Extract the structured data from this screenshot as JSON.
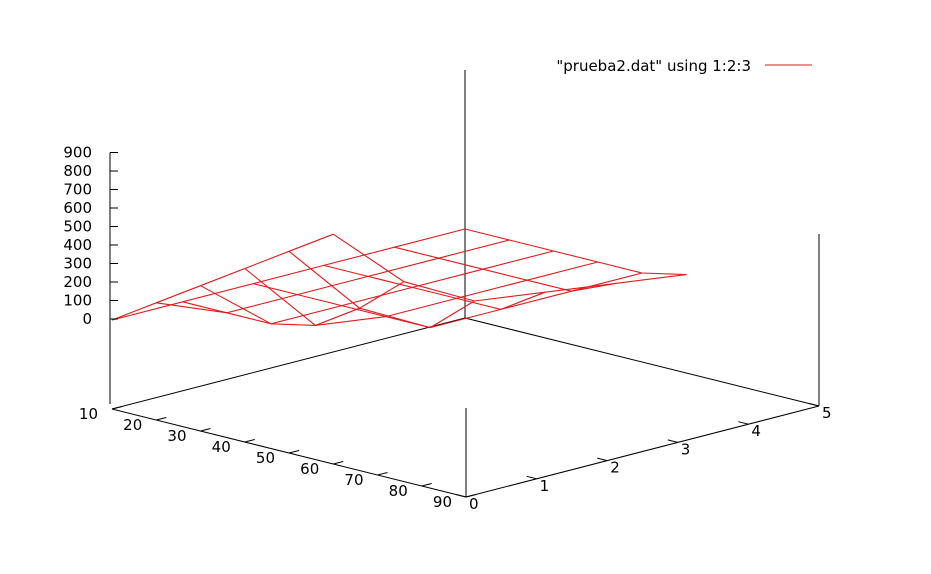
{
  "chart_data": {
    "type": "surface",
    "title": "",
    "legend": {
      "label": "\"prueba2.dat\" using 1:2:3",
      "placement": "top-right",
      "color": "#e31a1c"
    },
    "x": [
      10,
      20,
      30,
      40,
      50,
      60
    ],
    "y": [
      0,
      1,
      2,
      3,
      4,
      5
    ],
    "z_matrix": [
      [
        0,
        0,
        0,
        0,
        0,
        0
      ],
      [
        150,
        0,
        0,
        0,
        0,
        0
      ],
      [
        300,
        0,
        0,
        0,
        0,
        0
      ],
      [
        450,
        50,
        0,
        0,
        0,
        0
      ],
      [
        600,
        200,
        0,
        0,
        0,
        0
      ],
      [
        750,
        400,
        200,
        150,
        100,
        50
      ]
    ],
    "xlim": [
      10,
      90
    ],
    "ylim": [
      0,
      5
    ],
    "zlim": [
      0,
      900
    ],
    "x_ticks": [
      "10",
      "20",
      "30",
      "40",
      "50",
      "60",
      "70",
      "80",
      "90"
    ],
    "y_ticks": [
      "0",
      "1",
      "2",
      "3",
      "4",
      "5"
    ],
    "z_ticks": [
      "0",
      "100",
      "200",
      "300",
      "400",
      "500",
      "600",
      "700",
      "800",
      "900"
    ],
    "xlabel": "",
    "ylabel": "",
    "zlabel": "",
    "grid": false
  }
}
